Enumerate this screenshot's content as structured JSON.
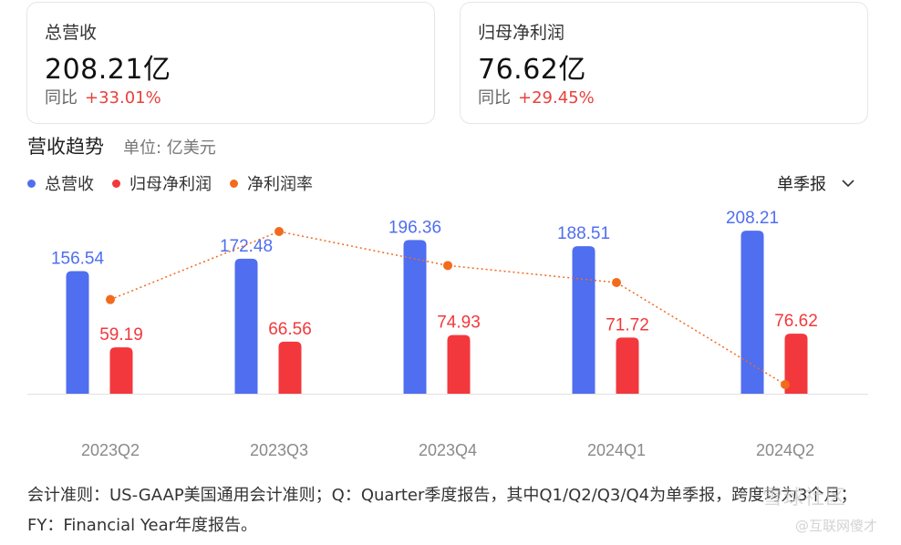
{
  "cards": [
    {
      "label": "总营收",
      "value": "208.21亿",
      "yoy_label": "同比",
      "yoy_value": "+33.01%"
    },
    {
      "label": "归母净利润",
      "value": "76.62亿",
      "yoy_label": "同比",
      "yoy_value": "+29.45%"
    }
  ],
  "section": {
    "title": "营收趋势",
    "unit": "单位: 亿美元"
  },
  "period_select": {
    "label": "单季报",
    "icon": "chevron-down-icon"
  },
  "colors": {
    "revenue": "#4f6ef0",
    "profit": "#f2383c",
    "margin": "#f26b1d",
    "gain": "#e8413c"
  },
  "chart_data": {
    "type": "bar",
    "categories": [
      "2023Q2",
      "2023Q3",
      "2023Q4",
      "2024Q1",
      "2024Q2"
    ],
    "series": [
      {
        "name": "总营收",
        "type": "bar",
        "values": [
          156.54,
          172.48,
          196.36,
          188.51,
          208.21
        ]
      },
      {
        "name": "归母净利润",
        "type": "bar",
        "values": [
          59.19,
          66.56,
          74.93,
          71.72,
          76.62
        ]
      },
      {
        "name": "净利润率",
        "type": "line",
        "values": [
          37.8,
          38.6,
          38.2,
          38.0,
          36.8
        ]
      }
    ],
    "legend_position": "top-left",
    "grid": false
  },
  "footnote": "会计准则：US-GAAP美国通用会计准则；Q：Quarter季度报告，其中Q1/Q2/Q3/Q4为单季报，跨度均为3个月；FY：Financial Year年度报告。",
  "watermark": {
    "main": "雪球社区",
    "sub": "@互联网傻才"
  }
}
